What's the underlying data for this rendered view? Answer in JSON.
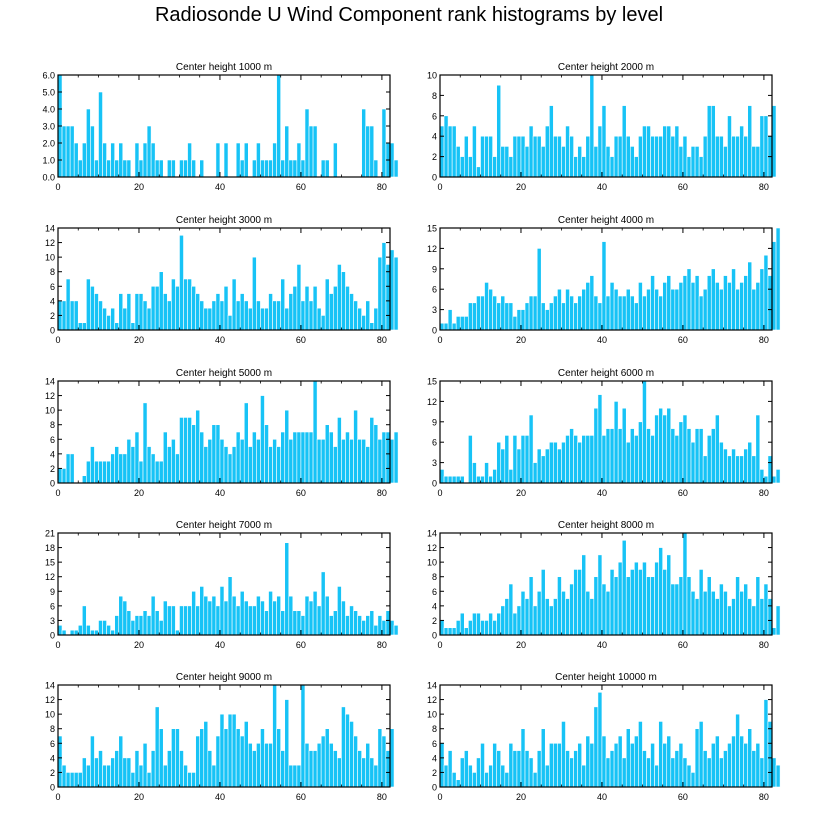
{
  "figure_title": "Radiosonde U Wind Component rank histograms by level",
  "bar_color": "#17c3f6",
  "bar_edge_color": "#ffffff",
  "x_ticks": [
    "0",
    "20",
    "40",
    "60",
    "80"
  ],
  "chart_data": [
    {
      "type": "bar",
      "title": "Center height 1000 m",
      "xlim": [
        0,
        82
      ],
      "ylim": [
        0,
        6
      ],
      "yticks": [
        "0.0",
        "1.0",
        "2.0",
        "3.0",
        "4.0",
        "5.0",
        "6.0"
      ],
      "values": [
        6,
        3,
        3,
        3,
        2,
        1,
        2,
        4,
        3,
        1,
        5,
        2,
        1,
        2,
        1,
        2,
        1,
        1,
        0,
        2,
        1,
        2,
        3,
        2,
        1,
        1,
        0,
        1,
        1,
        0,
        1,
        1,
        2,
        1,
        0,
        1,
        0,
        0,
        0,
        2,
        0,
        2,
        0,
        0,
        2,
        1,
        2,
        0,
        1,
        2,
        1,
        1,
        1,
        2,
        6,
        1,
        3,
        1,
        1,
        2,
        1,
        4,
        3,
        3,
        0,
        1,
        1,
        0,
        2,
        0,
        0,
        0,
        0,
        0,
        0,
        4,
        3,
        3,
        1,
        0,
        4,
        2,
        2,
        1
      ]
    },
    {
      "type": "bar",
      "title": "Center height 2000 m",
      "xlim": [
        0,
        82
      ],
      "ylim": [
        0,
        10
      ],
      "yticks": [
        "0",
        "2",
        "4",
        "6",
        "8",
        "10"
      ],
      "values": [
        5,
        6,
        5,
        5,
        3,
        2,
        4,
        2,
        5,
        1,
        4,
        4,
        4,
        2,
        9,
        3,
        3,
        2,
        4,
        4,
        4,
        3,
        5,
        4,
        4,
        3,
        5,
        7,
        4,
        4,
        3,
        5,
        4,
        2,
        3,
        2,
        4,
        10,
        3,
        5,
        7,
        3,
        2,
        4,
        4,
        7,
        4,
        3,
        2,
        4,
        5,
        5,
        4,
        4,
        4,
        5,
        5,
        4,
        5,
        3,
        4,
        2,
        3,
        3,
        2,
        4,
        7,
        7,
        4,
        4,
        3,
        6,
        4,
        4,
        5,
        4,
        7,
        3,
        3,
        6,
        6,
        4,
        7
      ]
    },
    {
      "type": "bar",
      "title": "Center height 3000 m",
      "xlim": [
        0,
        82
      ],
      "ylim": [
        0,
        14
      ],
      "yticks": [
        "0",
        "2",
        "4",
        "6",
        "8",
        "10",
        "12",
        "14"
      ],
      "values": [
        4,
        4,
        7,
        4,
        4,
        1,
        1,
        7,
        6,
        5,
        4,
        3,
        2,
        3,
        1,
        5,
        3,
        5,
        1,
        5,
        5,
        4,
        3,
        6,
        6,
        8,
        5,
        4,
        7,
        6,
        13,
        7,
        7,
        6,
        5,
        4,
        3,
        3,
        4,
        5,
        4,
        6,
        2,
        7,
        4,
        5,
        4,
        3,
        10,
        4,
        3,
        3,
        5,
        4,
        4,
        7,
        3,
        5,
        6,
        9,
        4,
        6,
        4,
        6,
        3,
        2,
        7,
        5,
        6,
        9,
        8,
        6,
        5,
        4,
        3,
        2,
        4,
        1,
        3,
        10,
        12,
        9,
        11,
        10
      ]
    },
    {
      "type": "bar",
      "title": "Center height 4000 m",
      "xlim": [
        0,
        82
      ],
      "ylim": [
        0,
        15
      ],
      "yticks": [
        "0",
        "3",
        "6",
        "9",
        "12",
        "15"
      ],
      "values": [
        1,
        1,
        3,
        1,
        2,
        2,
        2,
        4,
        4,
        5,
        5,
        7,
        6,
        5,
        4,
        5,
        4,
        4,
        2,
        3,
        3,
        4,
        5,
        5,
        12,
        4,
        3,
        4,
        5,
        6,
        4,
        6,
        5,
        4,
        5,
        6,
        7,
        8,
        5,
        4,
        13,
        5,
        7,
        6,
        5,
        5,
        6,
        5,
        4,
        7,
        5,
        6,
        8,
        6,
        5,
        7,
        8,
        6,
        6,
        7,
        8,
        9,
        7,
        8,
        5,
        6,
        8,
        9,
        7,
        6,
        8,
        7,
        9,
        6,
        7,
        8,
        10,
        6,
        7,
        9,
        11,
        8,
        13,
        15
      ]
    },
    {
      "type": "bar",
      "title": "Center height 5000 m",
      "xlim": [
        0,
        82
      ],
      "ylim": [
        0,
        14
      ],
      "yticks": [
        "0",
        "2",
        "4",
        "6",
        "8",
        "10",
        "12",
        "14"
      ],
      "values": [
        2,
        2,
        4,
        4,
        0,
        0,
        1,
        3,
        5,
        3,
        3,
        3,
        3,
        4,
        5,
        4,
        4,
        6,
        5,
        7,
        3,
        11,
        5,
        4,
        3,
        3,
        7,
        5,
        6,
        4,
        9,
        9,
        9,
        8,
        10,
        7,
        5,
        6,
        8,
        8,
        6,
        5,
        4,
        5,
        7,
        6,
        11,
        5,
        7,
        6,
        12,
        8,
        5,
        6,
        5,
        7,
        10,
        6,
        7,
        7,
        7,
        7,
        7,
        14,
        6,
        6,
        8,
        7,
        5,
        9,
        6,
        7,
        6,
        10,
        6,
        6,
        5,
        9,
        8,
        6,
        7,
        7,
        6,
        7
      ]
    },
    {
      "type": "bar",
      "title": "Center height 6000 m",
      "xlim": [
        0,
        82
      ],
      "ylim": [
        0,
        15
      ],
      "yticks": [
        "0",
        "3",
        "6",
        "9",
        "12",
        "15"
      ],
      "values": [
        2,
        1,
        1,
        1,
        1,
        1,
        0,
        7,
        3,
        1,
        1,
        3,
        1,
        2,
        6,
        5,
        7,
        2,
        7,
        5,
        7,
        7,
        10,
        3,
        5,
        4,
        5,
        6,
        6,
        5,
        6,
        7,
        8,
        7,
        6,
        7,
        7,
        7,
        11,
        13,
        7,
        8,
        8,
        12,
        8,
        11,
        6,
        8,
        7,
        9,
        15,
        8,
        7,
        10,
        11,
        10,
        11,
        8,
        7,
        9,
        10,
        8,
        6,
        8,
        8,
        4,
        7,
        8,
        10,
        6,
        5,
        4,
        5,
        4,
        4,
        5,
        6,
        4,
        10,
        2,
        1,
        4,
        1,
        2
      ]
    },
    {
      "type": "bar",
      "title": "Center height 7000 m",
      "xlim": [
        0,
        82
      ],
      "ylim": [
        0,
        21
      ],
      "yticks": [
        "0",
        "3",
        "6",
        "9",
        "12",
        "15",
        "18",
        "21"
      ],
      "values": [
        2,
        1,
        0,
        1,
        1,
        2,
        6,
        2,
        1,
        1,
        3,
        3,
        2,
        1,
        4,
        8,
        7,
        5,
        3,
        4,
        4,
        5,
        4,
        8,
        5,
        3,
        7,
        6,
        6,
        1,
        6,
        6,
        6,
        9,
        6,
        10,
        8,
        7,
        8,
        6,
        10,
        7,
        12,
        8,
        6,
        9,
        7,
        6,
        6,
        8,
        7,
        5,
        9,
        7,
        8,
        5,
        19,
        8,
        5,
        5,
        4,
        8,
        7,
        9,
        6,
        13,
        8,
        4,
        5,
        10,
        7,
        4,
        6,
        5,
        4,
        3,
        4,
        5,
        2,
        4,
        3,
        5,
        3,
        2
      ]
    },
    {
      "type": "bar",
      "title": "Center height 8000 m",
      "xlim": [
        0,
        82
      ],
      "ylim": [
        0,
        14
      ],
      "yticks": [
        "0",
        "2",
        "4",
        "6",
        "8",
        "10",
        "12",
        "14"
      ],
      "values": [
        2,
        1,
        1,
        1,
        2,
        3,
        1,
        2,
        3,
        3,
        2,
        2,
        3,
        2,
        3,
        4,
        5,
        7,
        3,
        4,
        6,
        5,
        8,
        4,
        6,
        9,
        5,
        4,
        5,
        8,
        6,
        5,
        7,
        9,
        9,
        11,
        6,
        5,
        8,
        11,
        7,
        6,
        9,
        8,
        10,
        13,
        8,
        9,
        10,
        9,
        10,
        8,
        8,
        10,
        12,
        9,
        11,
        7,
        7,
        8,
        14,
        8,
        6,
        5,
        9,
        6,
        8,
        6,
        5,
        7,
        6,
        4,
        5,
        8,
        6,
        7,
        5,
        4,
        8,
        5,
        7,
        5,
        1,
        4
      ]
    },
    {
      "type": "bar",
      "title": "Center height 9000 m",
      "xlim": [
        0,
        82
      ],
      "ylim": [
        0,
        14
      ],
      "yticks": [
        "0",
        "2",
        "4",
        "6",
        "8",
        "10",
        "12",
        "14"
      ],
      "values": [
        7,
        3,
        2,
        2,
        2,
        2,
        4,
        3,
        7,
        4,
        5,
        3,
        3,
        4,
        5,
        7,
        4,
        4,
        2,
        5,
        3,
        6,
        2,
        5,
        11,
        8,
        3,
        5,
        8,
        8,
        5,
        3,
        2,
        2,
        7,
        8,
        9,
        5,
        3,
        7,
        10,
        8,
        10,
        10,
        8,
        7,
        9,
        6,
        5,
        6,
        8,
        6,
        6,
        14,
        8,
        5,
        12,
        3,
        3,
        3,
        14,
        6,
        5,
        5,
        6,
        7,
        8,
        6,
        5,
        4,
        11,
        10,
        9,
        7,
        5,
        4,
        6,
        4,
        3,
        8,
        7,
        5,
        8
      ]
    },
    {
      "type": "bar",
      "title": "Center height 10000 m",
      "xlim": [
        0,
        82
      ],
      "ylim": [
        0,
        14
      ],
      "yticks": [
        "0",
        "2",
        "4",
        "6",
        "8",
        "10",
        "12",
        "14"
      ],
      "values": [
        6,
        3,
        5,
        2,
        1,
        4,
        5,
        3,
        2,
        4,
        6,
        2,
        3,
        6,
        5,
        3,
        2,
        6,
        5,
        5,
        8,
        5,
        4,
        2,
        5,
        8,
        3,
        6,
        6,
        6,
        9,
        5,
        4,
        5,
        6,
        3,
        7,
        6,
        11,
        13,
        7,
        4,
        5,
        6,
        7,
        4,
        8,
        6,
        7,
        9,
        5,
        4,
        6,
        3,
        9,
        6,
        7,
        4,
        5,
        6,
        4,
        3,
        2,
        8,
        9,
        5,
        4,
        6,
        7,
        4,
        5,
        6,
        7,
        10,
        7,
        6,
        8,
        5,
        6,
        4,
        12,
        9,
        4,
        3
      ]
    }
  ]
}
